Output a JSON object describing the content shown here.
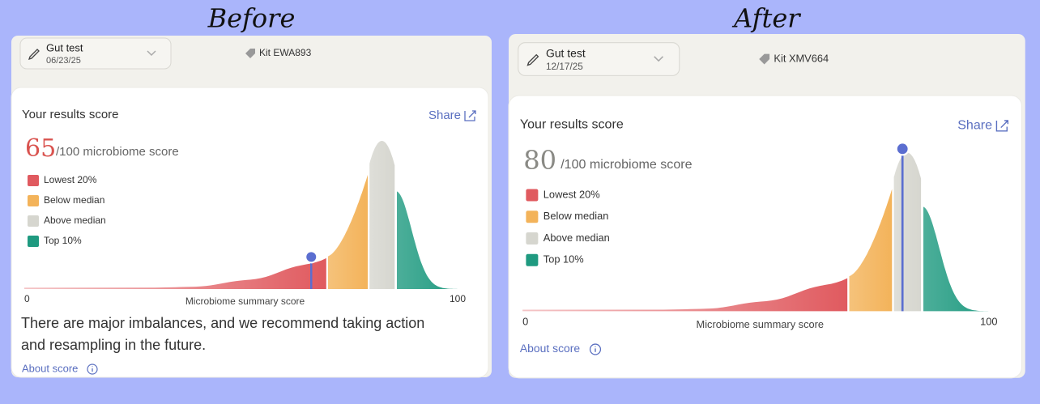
{
  "panels": [
    {
      "heading": "Before",
      "test": "Gut test",
      "date": "06/23/25",
      "kit": "Kit EWA893",
      "results_title": "Your results score",
      "share": "Share",
      "score": 65,
      "score_color": "#d9534f",
      "score_suffix": "/100 microbiome score",
      "legend": [
        {
          "label": "Lowest 20%",
          "color": "#e05a5f"
        },
        {
          "label": "Below median",
          "color": "#f3b35a"
        },
        {
          "label": "Above median",
          "color": "#d6d6cf"
        },
        {
          "label": "Top 10%",
          "color": "#1f9a80"
        }
      ],
      "axis": {
        "min": 0,
        "max": 100,
        "label": "Microbiome summary score"
      },
      "message_lines": [
        "There are major imbalances, and we recommend taking action",
        "and resampling in the future."
      ],
      "about": "About score"
    },
    {
      "heading": "After",
      "test": "Gut test",
      "date": "12/17/25",
      "kit": "Kit XMV664",
      "results_title": "Your results score",
      "share": "Share",
      "score": 80,
      "score_color": "#8a8a85",
      "score_suffix": "/100 microbiome score",
      "legend": [
        {
          "label": "Lowest 20%",
          "color": "#e05a5f"
        },
        {
          "label": "Below median",
          "color": "#f3b35a"
        },
        {
          "label": "Above median",
          "color": "#d6d6cf"
        },
        {
          "label": "Top 10%",
          "color": "#1f9a80"
        }
      ],
      "axis": {
        "min": 0,
        "max": 100,
        "label": "Microbiome summary score"
      },
      "message_lines": [],
      "about": "About score"
    }
  ]
}
